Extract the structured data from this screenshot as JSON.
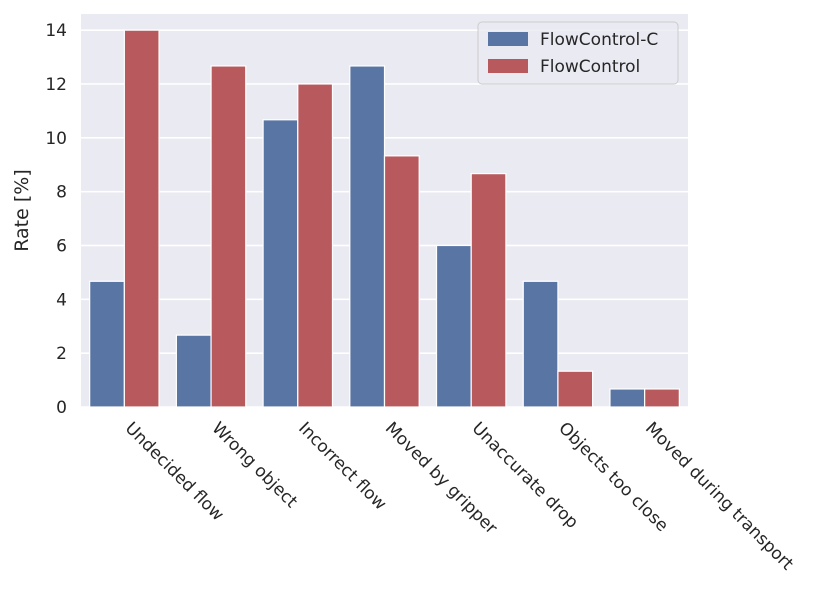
{
  "chart_data": {
    "type": "bar",
    "categories": [
      "Undecided flow",
      "Wrong object",
      "Incorrect flow",
      "Moved by gripper",
      "Unaccurate drop",
      "Objects too close",
      "Moved during transport"
    ],
    "series": [
      {
        "name": "FlowControl-C",
        "color": "#5875a4",
        "values": [
          4.67,
          2.67,
          10.67,
          12.67,
          6.0,
          4.67,
          0.67
        ]
      },
      {
        "name": "FlowControl",
        "color": "#b85a5d",
        "values": [
          14.0,
          12.67,
          12.0,
          9.33,
          8.67,
          1.33,
          0.67
        ]
      }
    ],
    "title": "",
    "xlabel": "",
    "ylabel": "Rate [%]",
    "ylim": [
      0,
      14.6
    ],
    "yticks": [
      0,
      2,
      4,
      6,
      8,
      10,
      12,
      14
    ],
    "grid": true,
    "legend": "top-right",
    "background": "#eaeaf2"
  }
}
